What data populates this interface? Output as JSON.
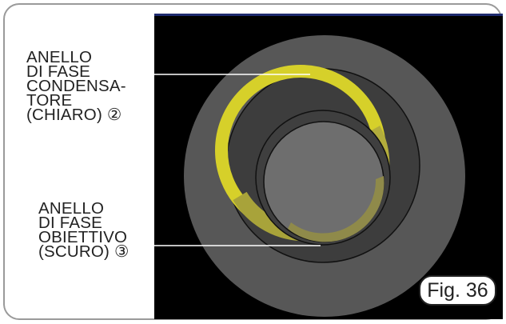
{
  "labels": {
    "condenser_ring": [
      "ANELLO",
      "DI FASE",
      "CONDENSA-",
      "TORE",
      "(CHIARO) ②"
    ],
    "objective_ring": [
      "ANELLO",
      "DI FASE",
      "OBIETTIVO",
      "(SCURO) ③"
    ]
  },
  "figure_label": "Fig. 36",
  "colors": {
    "background": "#000000",
    "outer_disc": "#575757",
    "inner_disc": "#6e6e6e",
    "condenser_ring": "#d6d02a",
    "objective_ring": "#8f8a3a",
    "top_border": "#1e2a6e"
  }
}
